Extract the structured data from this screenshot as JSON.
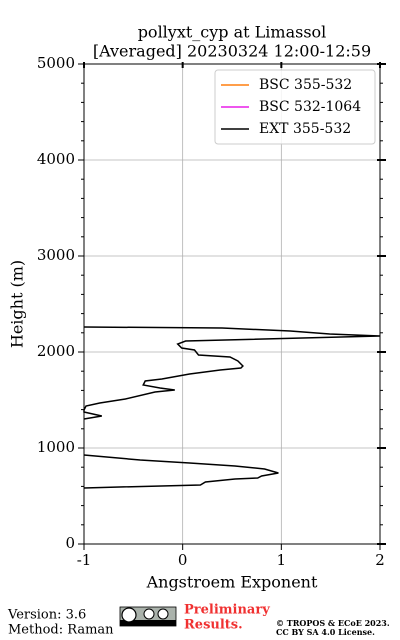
{
  "chart_data": {
    "type": "profile",
    "title": "pollyxt_cyp at Limassol",
    "subtitle": "[Averaged] 20230324 12:00-12:59",
    "xlabel": "Angstroem Exponent",
    "ylabel": "Height (m)",
    "xlim": [
      -1,
      2
    ],
    "xticks": [
      -1,
      0,
      1,
      2
    ],
    "ylim": [
      0,
      5000
    ],
    "yticks": [
      0,
      1000,
      2000,
      3000,
      4000,
      5000
    ],
    "grid": true,
    "legend": "upper right",
    "series": [
      {
        "name": "BSC 355-532",
        "color": "#ff7f0e",
        "values": [],
        "y": []
      },
      {
        "name": "BSC 532-1064",
        "color": "#e81ee8",
        "values": [],
        "y": []
      },
      {
        "name": "EXT 355-532",
        "color": "#000000",
        "values": [
          -1,
          0.4,
          1.09,
          1.49,
          2.0,
          0.03,
          -0.05,
          -0.01,
          0.12,
          0.16,
          0.48,
          0.56,
          0.61,
          0.59,
          0.38,
          0.07,
          -0.21,
          -0.38,
          -0.4,
          -0.23,
          -0.08,
          -0.28,
          -0.58,
          -0.84,
          -0.98,
          -1,
          -1,
          -0.82,
          -1,
          null,
          -1,
          -0.43,
          0.07,
          0.53,
          0.83,
          0.97,
          0.8,
          0.76,
          0.53,
          0.23,
          0.18,
          -0.64,
          -1
        ],
        "y": [
          2260,
          2250,
          2219,
          2188,
          2167,
          2115,
          2083,
          2042,
          2021,
          1969,
          1948,
          1906,
          1854,
          1833,
          1813,
          1771,
          1719,
          1698,
          1656,
          1625,
          1604,
          1583,
          1510,
          1469,
          1438,
          1396,
          1375,
          1333,
          1302,
          null,
          927,
          875,
          844,
          813,
          781,
          740,
          708,
          688,
          677,
          646,
          615,
          594,
          583
        ]
      }
    ]
  },
  "footer": {
    "version": "Version: 3.6",
    "method": "Method: Raman",
    "status": [
      "Preliminary",
      "Results."
    ],
    "copyright": [
      "© TROPOS & ECoE 2023.",
      "CC BY SA 4.0 License."
    ]
  }
}
